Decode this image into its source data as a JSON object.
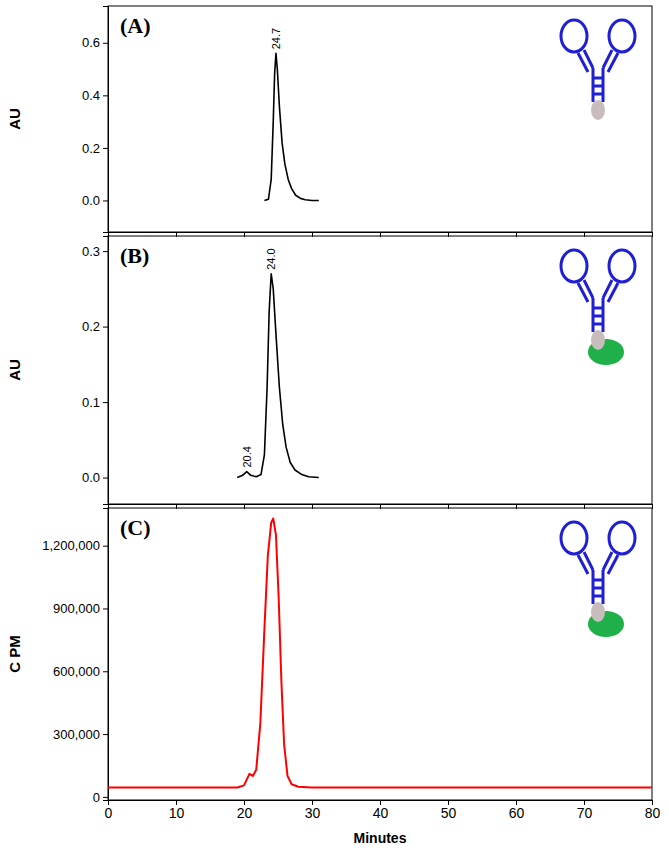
{
  "chart_data": [
    {
      "type": "line",
      "title": "(A)",
      "y_label": "AU",
      "color": "#000000",
      "tick_labels": "y",
      "xlim": [
        0,
        80
      ],
      "xticks": [
        0,
        10,
        20,
        30,
        40,
        50,
        60,
        70,
        80
      ],
      "ylim": [
        -0.12,
        0.74
      ],
      "yticks": [
        {
          "value": 0,
          "label": "0.0"
        },
        0.2,
        0.4,
        0.6
      ],
      "x": [
        23.0,
        23.6,
        24.0,
        24.3,
        24.5,
        24.7,
        24.9,
        25.2,
        25.6,
        26.0,
        26.5,
        27.0,
        27.6,
        28.3,
        29.0,
        30.0,
        31.0
      ],
      "values": [
        0.0,
        0.005,
        0.08,
        0.3,
        0.48,
        0.56,
        0.5,
        0.36,
        0.22,
        0.14,
        0.08,
        0.045,
        0.02,
        0.008,
        0.003,
        0.0,
        0.0
      ],
      "annotations": [
        {
          "text": "24.7",
          "x": 24.7,
          "y": 0.56
        }
      ]
    },
    {
      "type": "line",
      "title": "(B)",
      "y_label": "AU",
      "color": "#000000",
      "tick_labels": "y",
      "xlim": [
        0,
        80
      ],
      "xticks": [
        0,
        10,
        20,
        30,
        40,
        50,
        60,
        70,
        80
      ],
      "ylim": [
        -0.035,
        0.32
      ],
      "yticks": [
        {
          "value": 0,
          "label": "0.0"
        },
        0.1,
        0.2,
        0.3
      ],
      "x": [
        19.0,
        19.8,
        20.4,
        21.0,
        21.8,
        22.5,
        23.0,
        23.4,
        23.7,
        24.0,
        24.3,
        24.7,
        25.2,
        25.7,
        26.2,
        26.8,
        27.5,
        28.5,
        29.5,
        31.0
      ],
      "values": [
        0.0,
        0.003,
        0.008,
        0.003,
        0.001,
        0.004,
        0.03,
        0.12,
        0.22,
        0.27,
        0.25,
        0.19,
        0.12,
        0.07,
        0.04,
        0.02,
        0.01,
        0.004,
        0.001,
        0.0
      ],
      "annotations": [
        {
          "text": "24.0",
          "x": 24.0,
          "y": 0.27
        },
        {
          "text": "20.4",
          "x": 20.4,
          "y": 0.008
        }
      ]
    },
    {
      "type": "line",
      "title": "(C)",
      "y_label": "C PM",
      "x_label": "Minutes",
      "color": "#ff0000",
      "xlim": [
        0,
        80
      ],
      "xticks": [
        0,
        10,
        20,
        30,
        40,
        50,
        60,
        70,
        80
      ],
      "ylim": [
        -15000,
        1380000
      ],
      "yticks": [
        0,
        {
          "value": 300000,
          "label": "300,000"
        },
        {
          "value": 600000,
          "label": "600,000"
        },
        {
          "value": 900000,
          "label": "900,000"
        },
        {
          "value": 1200000,
          "label": "1,200,000"
        }
      ],
      "x": [
        0,
        19.0,
        20.0,
        20.8,
        21.3,
        21.8,
        22.4,
        23.0,
        23.5,
        24.0,
        24.3,
        24.7,
        25.1,
        25.5,
        25.9,
        26.4,
        27.0,
        28.0,
        30.0,
        80
      ],
      "values": [
        45000,
        45000,
        55000,
        110000,
        100000,
        130000,
        350000,
        800000,
        1150000,
        1310000,
        1330000,
        1250000,
        950000,
        550000,
        250000,
        100000,
        60000,
        48000,
        45000,
        45000
      ]
    }
  ]
}
